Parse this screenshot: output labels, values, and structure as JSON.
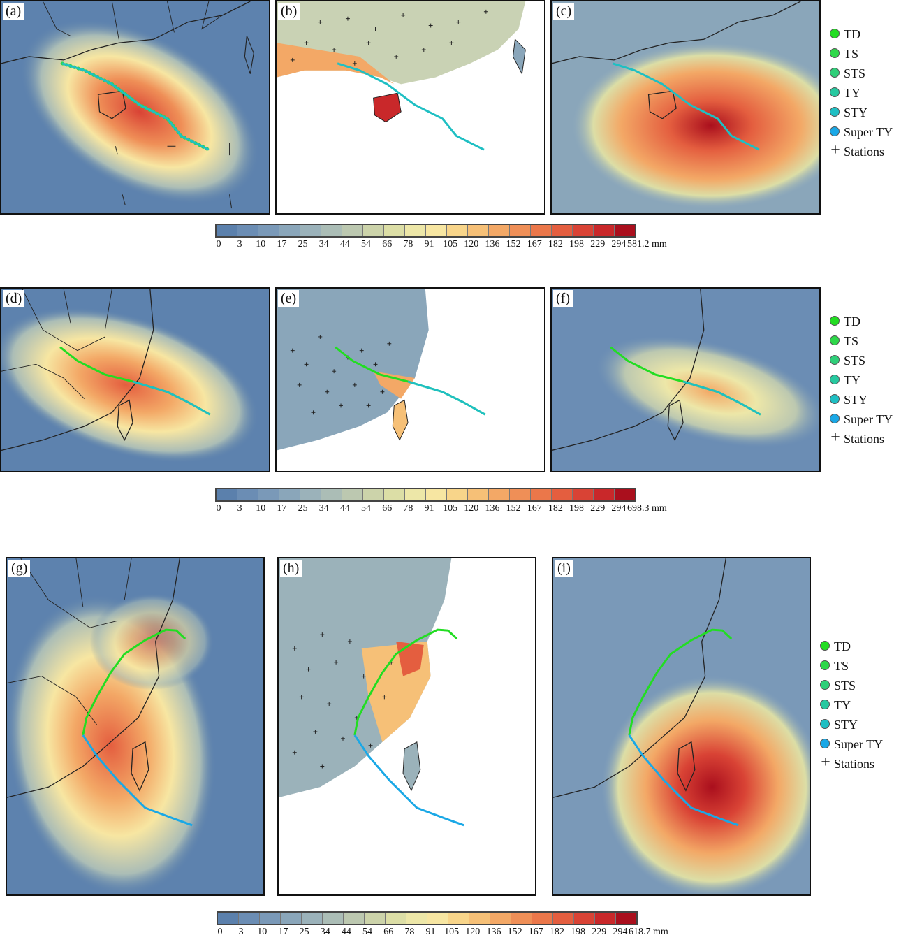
{
  "panel_labels": [
    "(a)",
    "(b)",
    "(c)",
    "(d)",
    "(e)",
    "(f)",
    "(g)",
    "(h)",
    "(i)"
  ],
  "legend": {
    "items": [
      {
        "label": "TD",
        "color": "#22dd22"
      },
      {
        "label": "TS",
        "color": "#2ed84a"
      },
      {
        "label": "STS",
        "color": "#2fcf79"
      },
      {
        "label": "TY",
        "color": "#27c9a0"
      },
      {
        "label": "STY",
        "color": "#1fbfc3"
      },
      {
        "label": "Super TY",
        "color": "#1aa8e6"
      }
    ],
    "stations_label": "Stations",
    "stations_symbol": "+"
  },
  "colorbar": {
    "ticks": [
      "0",
      "3",
      "10",
      "17",
      "25",
      "34",
      "44",
      "54",
      "66",
      "78",
      "91",
      "105",
      "120",
      "136",
      "152",
      "167",
      "182",
      "198",
      "229",
      "294"
    ],
    "colors": [
      "#5b80ac",
      "#6b8db4",
      "#7a99b8",
      "#8aa6ba",
      "#9bb2ba",
      "#abbdb6",
      "#bcc8b0",
      "#ccd3aa",
      "#dcdea6",
      "#ede7a8",
      "#f7e6a2",
      "#f8d58a",
      "#f6c077",
      "#f3a866",
      "#ef8f57",
      "#eb774a",
      "#e45e3f",
      "#d94335",
      "#c9282a",
      "#aa0f1d"
    ],
    "max_labels": [
      "581.2 mm",
      "698.3 mm",
      "618.7 mm"
    ]
  }
}
